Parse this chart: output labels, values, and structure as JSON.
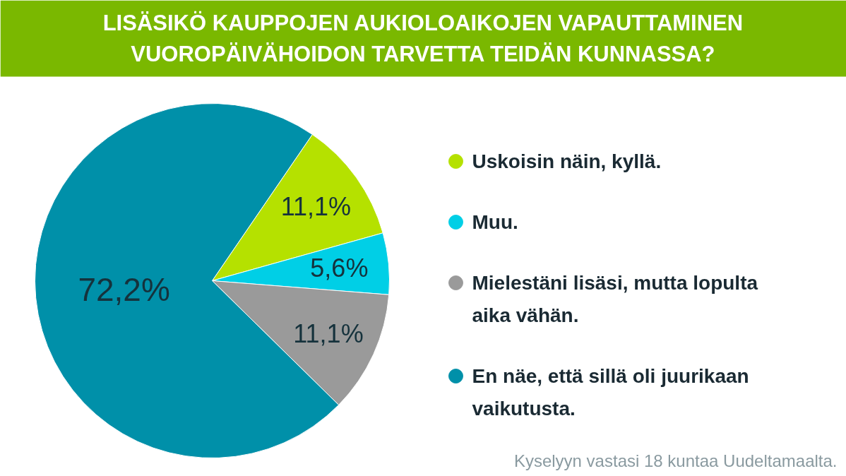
{
  "chart_data": {
    "type": "pie",
    "title": "LISÄSIKÖ KAUPPOJEN AUKIOLOAIKOJEN VAPAUTTAMINEN VUOROPÄIVÄHOIDON TARVETTA TEIDÄN KUNNASSA?",
    "categories": [
      "Uskoisin näin, kyllä.",
      "Muu.",
      "Mielestäni lisäsi, mutta lopulta aika vähän.",
      "En näe, että sillä oli juurikaan vaikutusta."
    ],
    "values": [
      11.1,
      5.6,
      11.1,
      72.2
    ],
    "colors": [
      "#b5e100",
      "#00cfe6",
      "#9a9a9a",
      "#0090a9"
    ],
    "value_labels": [
      "11,1%",
      "5,6%",
      "11,1%",
      "72,2%"
    ],
    "legend": "right",
    "annotations": [
      "Kyselyyn vastasi 18 kuntaa Uudeltamaalta."
    ]
  }
}
